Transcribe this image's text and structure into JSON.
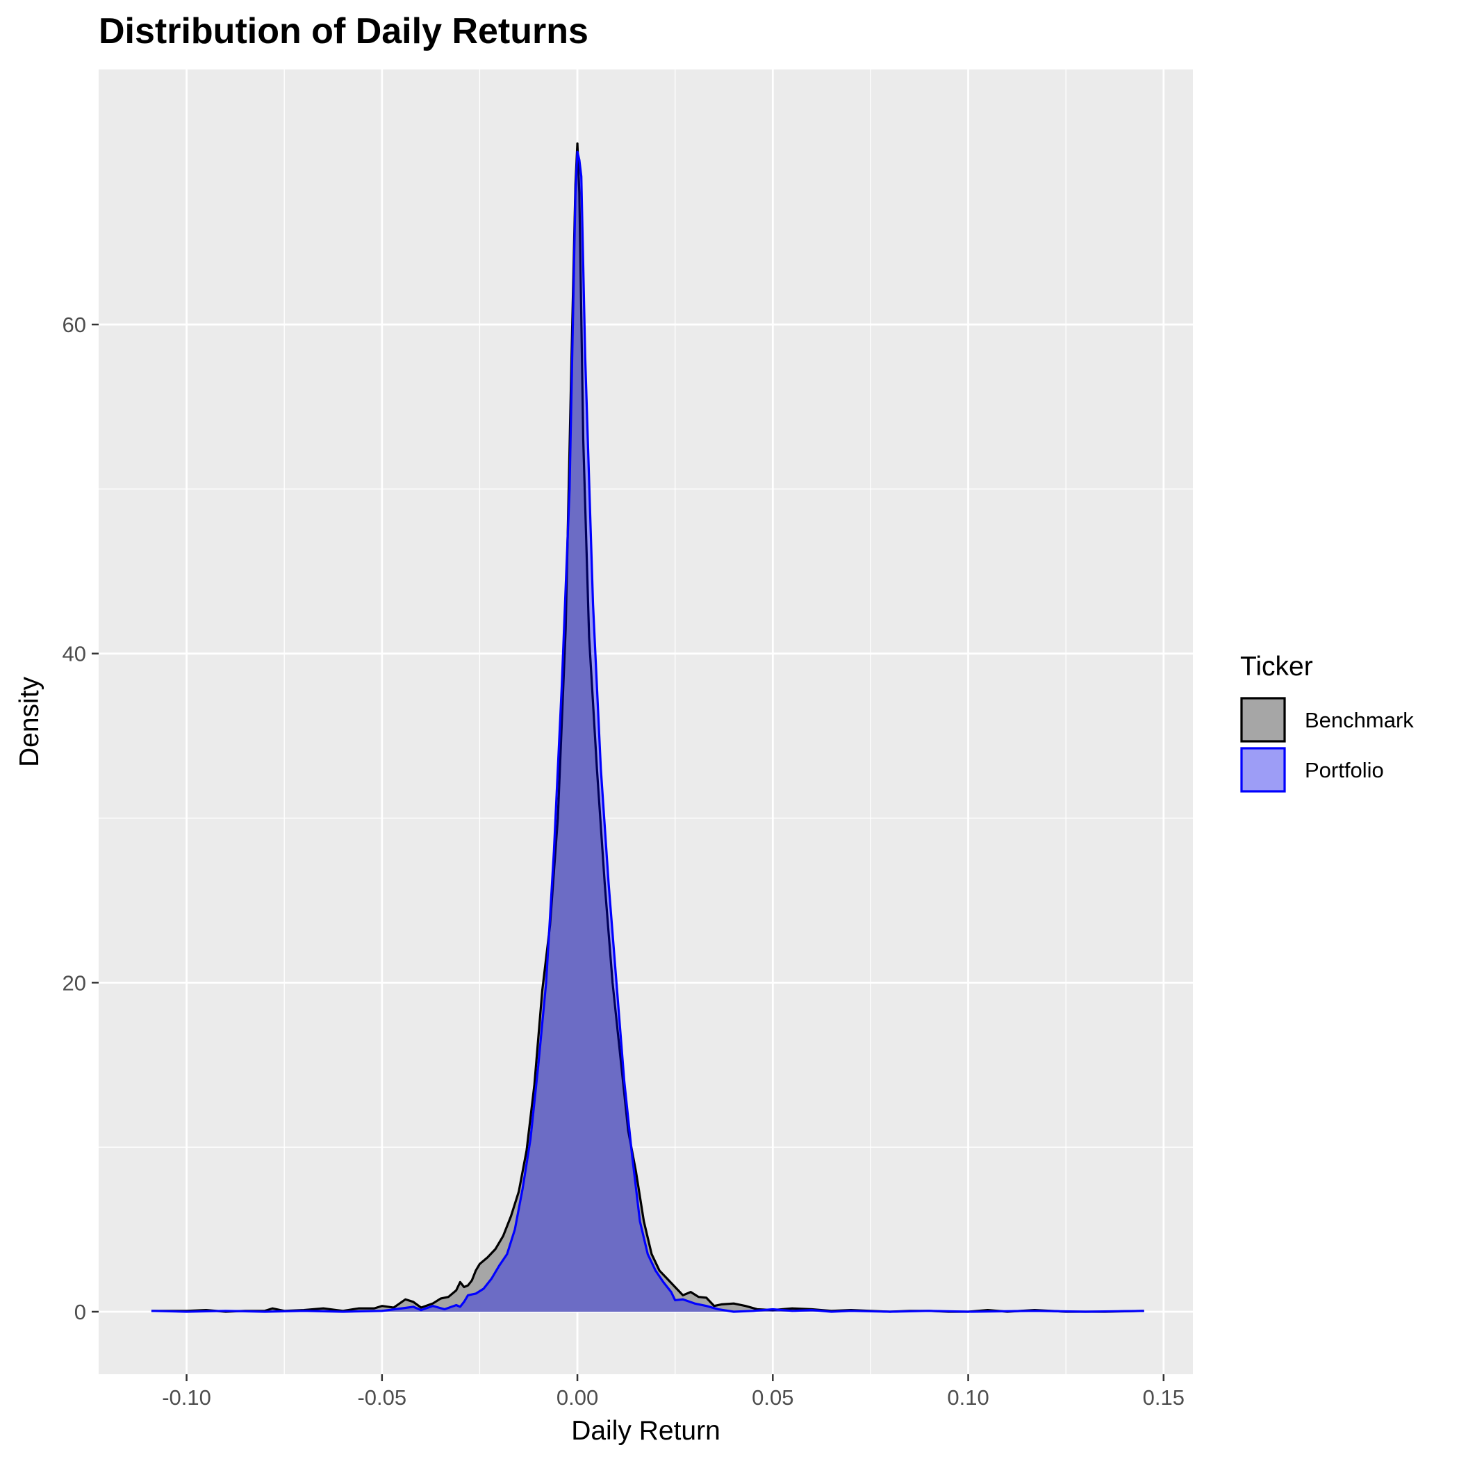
{
  "chart_data": {
    "type": "area",
    "title": "Distribution of Daily Returns",
    "xlabel": "Daily Return",
    "ylabel": "Density",
    "xlim": [
      -0.1225,
      0.1575
    ],
    "ylim": [
      -3.8,
      75.5
    ],
    "x_ticks": [
      -0.1,
      -0.05,
      0.0,
      0.05,
      0.1,
      0.15
    ],
    "x_tick_labels": [
      "-0.10",
      "-0.05",
      "0.00",
      "0.05",
      "0.10",
      "0.15"
    ],
    "y_ticks": [
      0,
      20,
      40,
      60
    ],
    "y_tick_labels": [
      "0",
      "20",
      "40",
      "60"
    ],
    "grid": true,
    "legend": {
      "title": "Ticker",
      "placement": "right"
    },
    "colors": {
      "panel": "#ebebeb",
      "grid": "#ffffff",
      "Benchmark": "#000000",
      "Portfolio": "#0000ff"
    },
    "series": [
      {
        "name": "Benchmark",
        "fill": "#a6a6a6",
        "stroke": "#000000",
        "points": [
          [
            -0.109,
            0.05
          ],
          [
            -0.1,
            0.05
          ],
          [
            -0.095,
            0.1
          ],
          [
            -0.09,
            0.0
          ],
          [
            -0.085,
            0.05
          ],
          [
            -0.08,
            0.05
          ],
          [
            -0.078,
            0.2
          ],
          [
            -0.075,
            0.05
          ],
          [
            -0.07,
            0.1
          ],
          [
            -0.065,
            0.2
          ],
          [
            -0.06,
            0.05
          ],
          [
            -0.056,
            0.2
          ],
          [
            -0.052,
            0.2
          ],
          [
            -0.05,
            0.35
          ],
          [
            -0.047,
            0.25
          ],
          [
            -0.044,
            0.75
          ],
          [
            -0.042,
            0.6
          ],
          [
            -0.04,
            0.25
          ],
          [
            -0.037,
            0.5
          ],
          [
            -0.035,
            0.8
          ],
          [
            -0.033,
            0.9
          ],
          [
            -0.031,
            1.3
          ],
          [
            -0.03,
            1.8
          ],
          [
            -0.029,
            1.5
          ],
          [
            -0.028,
            1.6
          ],
          [
            -0.027,
            1.9
          ],
          [
            -0.026,
            2.5
          ],
          [
            -0.025,
            2.9
          ],
          [
            -0.023,
            3.3
          ],
          [
            -0.021,
            3.8
          ],
          [
            -0.019,
            4.6
          ],
          [
            -0.017,
            5.8
          ],
          [
            -0.015,
            7.3
          ],
          [
            -0.013,
            9.8
          ],
          [
            -0.011,
            13.8
          ],
          [
            -0.009,
            19.5
          ],
          [
            -0.007,
            23.5
          ],
          [
            -0.005,
            30.0
          ],
          [
            -0.003,
            41.5
          ],
          [
            -0.0015,
            58.0
          ],
          [
            -0.0005,
            68.5
          ],
          [
            0.0,
            71.0
          ],
          [
            0.0005,
            68.0
          ],
          [
            0.0015,
            53.0
          ],
          [
            0.003,
            41.0
          ],
          [
            0.005,
            33.0
          ],
          [
            0.007,
            26.0
          ],
          [
            0.009,
            20.0
          ],
          [
            0.011,
            15.5
          ],
          [
            0.013,
            11.0
          ],
          [
            0.015,
            8.5
          ],
          [
            0.017,
            5.5
          ],
          [
            0.019,
            3.5
          ],
          [
            0.021,
            2.5
          ],
          [
            0.023,
            2.0
          ],
          [
            0.025,
            1.5
          ],
          [
            0.027,
            1.0
          ],
          [
            0.029,
            1.2
          ],
          [
            0.031,
            0.9
          ],
          [
            0.033,
            0.85
          ],
          [
            0.035,
            0.35
          ],
          [
            0.037,
            0.45
          ],
          [
            0.04,
            0.5
          ],
          [
            0.043,
            0.35
          ],
          [
            0.046,
            0.15
          ],
          [
            0.05,
            0.1
          ],
          [
            0.055,
            0.2
          ],
          [
            0.06,
            0.15
          ],
          [
            0.065,
            0.05
          ],
          [
            0.07,
            0.1
          ],
          [
            0.075,
            0.05
          ],
          [
            0.08,
            0.0
          ],
          [
            0.085,
            0.05
          ],
          [
            0.09,
            0.05
          ],
          [
            0.095,
            0.0
          ],
          [
            0.1,
            0.0
          ],
          [
            0.105,
            0.1
          ],
          [
            0.11,
            0.0
          ],
          [
            0.117,
            0.1
          ],
          [
            0.125,
            0.0
          ],
          [
            0.135,
            0.0
          ],
          [
            0.145,
            0.05
          ]
        ]
      },
      {
        "name": "Portfolio",
        "fill": "rgba(0,0,255,0.35)",
        "stroke": "#0000ff",
        "points": [
          [
            -0.109,
            0.05
          ],
          [
            -0.1,
            0.0
          ],
          [
            -0.09,
            0.05
          ],
          [
            -0.08,
            0.0
          ],
          [
            -0.07,
            0.05
          ],
          [
            -0.06,
            0.0
          ],
          [
            -0.05,
            0.05
          ],
          [
            -0.045,
            0.2
          ],
          [
            -0.042,
            0.3
          ],
          [
            -0.04,
            0.1
          ],
          [
            -0.037,
            0.35
          ],
          [
            -0.034,
            0.15
          ],
          [
            -0.031,
            0.4
          ],
          [
            -0.03,
            0.3
          ],
          [
            -0.029,
            0.6
          ],
          [
            -0.028,
            1.0
          ],
          [
            -0.026,
            1.1
          ],
          [
            -0.024,
            1.4
          ],
          [
            -0.022,
            2.0
          ],
          [
            -0.02,
            2.8
          ],
          [
            -0.018,
            3.5
          ],
          [
            -0.016,
            5.0
          ],
          [
            -0.014,
            7.5
          ],
          [
            -0.012,
            10.5
          ],
          [
            -0.01,
            15.0
          ],
          [
            -0.008,
            20.0
          ],
          [
            -0.006,
            28.0
          ],
          [
            -0.004,
            38.0
          ],
          [
            -0.002,
            50.0
          ],
          [
            -0.0005,
            68.0
          ],
          [
            0.0,
            70.5
          ],
          [
            0.0005,
            70.0
          ],
          [
            0.001,
            69.0
          ],
          [
            0.002,
            58.0
          ],
          [
            0.004,
            43.0
          ],
          [
            0.006,
            33.0
          ],
          [
            0.008,
            26.0
          ],
          [
            0.01,
            20.0
          ],
          [
            0.012,
            14.0
          ],
          [
            0.014,
            9.5
          ],
          [
            0.016,
            5.5
          ],
          [
            0.018,
            3.5
          ],
          [
            0.02,
            2.5
          ],
          [
            0.022,
            1.8
          ],
          [
            0.024,
            1.2
          ],
          [
            0.025,
            0.7
          ],
          [
            0.027,
            0.75
          ],
          [
            0.03,
            0.5
          ],
          [
            0.033,
            0.35
          ],
          [
            0.036,
            0.15
          ],
          [
            0.04,
            0.0
          ],
          [
            0.045,
            0.05
          ],
          [
            0.05,
            0.15
          ],
          [
            0.055,
            0.05
          ],
          [
            0.06,
            0.1
          ],
          [
            0.065,
            0.0
          ],
          [
            0.07,
            0.05
          ],
          [
            0.08,
            0.0
          ],
          [
            0.09,
            0.05
          ],
          [
            0.1,
            0.0
          ],
          [
            0.117,
            0.05
          ],
          [
            0.13,
            0.0
          ],
          [
            0.145,
            0.05
          ]
        ]
      }
    ]
  }
}
